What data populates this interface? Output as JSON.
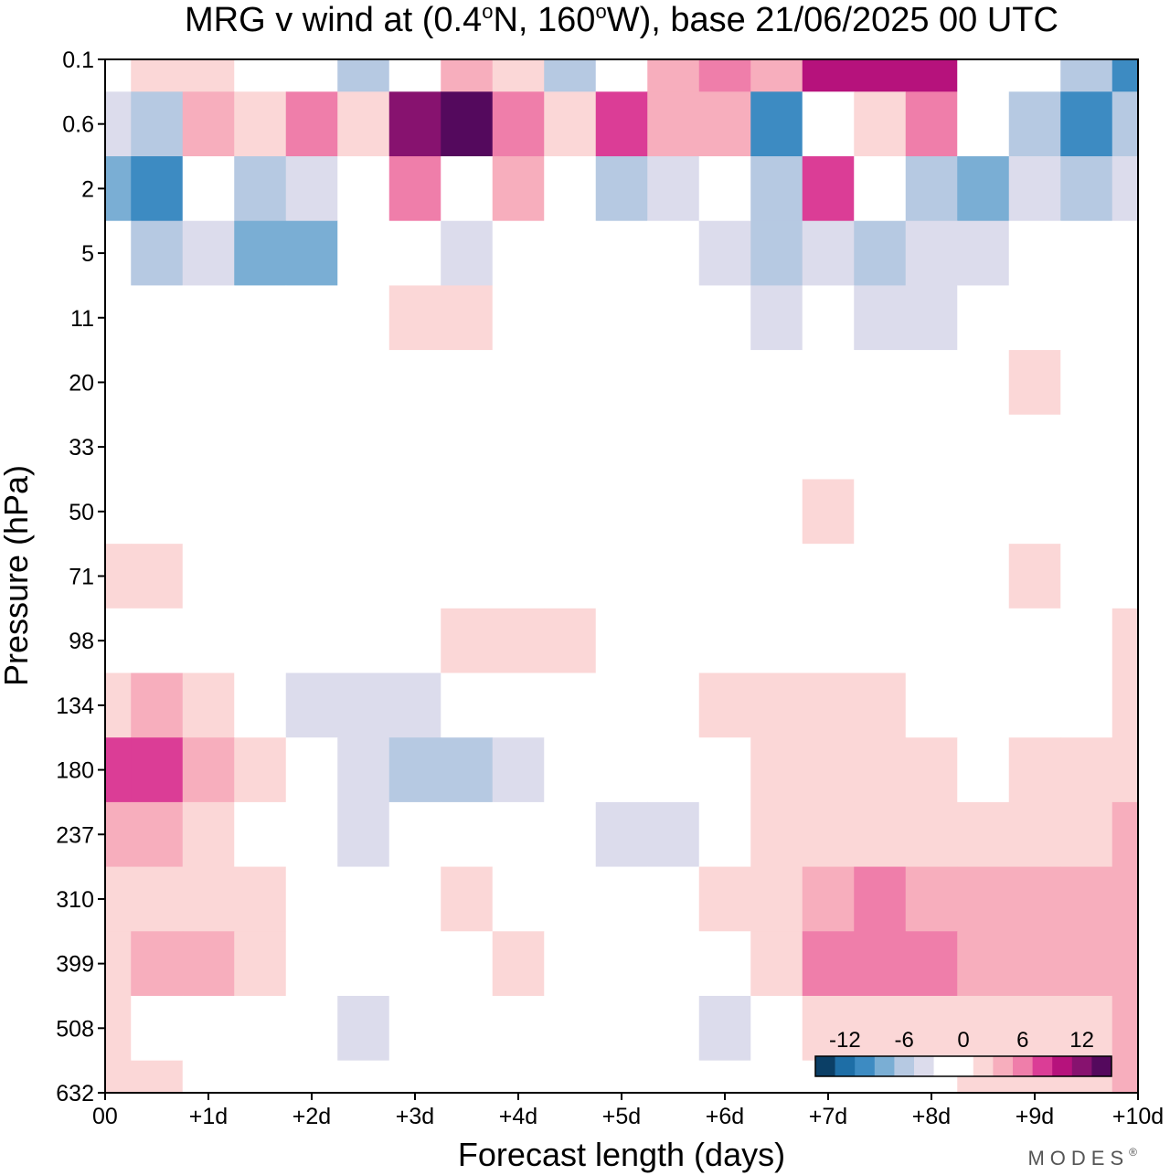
{
  "chart_data": {
    "type": "heatmap",
    "title": "MRG v wind at (0.4°N, 160°W),  base 21/06/2025  00 UTC",
    "title_parts": {
      "p1": "MRG v wind at (0.4",
      "deg1": "o",
      "p2": "N, 160",
      "deg2": "o",
      "p3": "W),  base 21/06/2025  00 UTC"
    },
    "xlabel": "Forecast length (days)",
    "ylabel": "Pressure (hPa)",
    "x_ticks": [
      "00",
      "+1d",
      "+2d",
      "+3d",
      "+4d",
      "+5d",
      "+6d",
      "+7d",
      "+8d",
      "+9d",
      "+10d"
    ],
    "y_ticks": [
      "0.1",
      "0.6",
      "2",
      "5",
      "11",
      "20",
      "33",
      "50",
      "71",
      "98",
      "134",
      "180",
      "237",
      "310",
      "399",
      "508",
      "632"
    ],
    "y_scale": "log",
    "xlim": [
      0,
      10
    ],
    "ylim": [
      632,
      0.1
    ],
    "colorbar": {
      "ticks": [
        "-12",
        "-6",
        "0",
        "6",
        "12"
      ],
      "colors": [
        "#0b3f66",
        "#1e6ea6",
        "#3d8bc2",
        "#7aaed4",
        "#b6c9e2",
        "#dcdcec",
        "#ffffff",
        "#ffffff",
        "#fbd7d7",
        "#f7aebd",
        "#ef7eaa",
        "#db3d96",
        "#b6127c",
        "#87126f",
        "#54095d"
      ],
      "placement": "bottom-right"
    },
    "x": [
      0,
      0.5,
      1,
      1.5,
      2,
      2.5,
      3,
      3.5,
      4,
      4.5,
      5,
      5.5,
      6,
      6.5,
      7,
      7.5,
      8,
      8.5,
      9,
      9.5,
      10
    ],
    "levels": [
      0.1,
      0.6,
      2,
      5,
      11,
      20,
      33,
      50,
      71,
      98,
      134,
      180,
      237,
      310,
      399,
      508,
      632
    ],
    "v_grid": [
      [
        0,
        2,
        2,
        -2,
        0,
        -6,
        0,
        4,
        2,
        -5,
        0,
        4,
        6,
        4,
        10,
        11,
        10,
        0,
        0,
        -6,
        -10
      ],
      [
        -3,
        -6,
        5,
        3,
        6,
        2,
        12,
        14,
        7,
        3,
        9,
        4,
        5,
        -10,
        0,
        2,
        6,
        -2,
        -6,
        -10,
        -5
      ],
      [
        -8,
        -9,
        -2,
        -6,
        -4,
        0,
        6,
        0,
        5,
        0,
        -6,
        -3,
        0,
        -5,
        8,
        0,
        -6,
        -8,
        -3,
        -5,
        -3
      ],
      [
        -2,
        -5,
        -4,
        -8,
        -7,
        -2,
        0,
        -3,
        -2,
        0,
        0,
        0,
        -3,
        -6,
        -3,
        -5,
        -4,
        -3,
        -2,
        0,
        0
      ],
      [
        -1,
        -2,
        -1,
        -2,
        -2,
        0,
        2,
        3,
        0,
        -2,
        -1,
        -1,
        -1,
        -4,
        -2,
        -3,
        -3,
        -2,
        -1,
        -1,
        -1
      ],
      [
        -2,
        0,
        0,
        0,
        0,
        -1,
        0,
        0,
        0,
        -2,
        -1,
        0,
        0,
        -2,
        0,
        0,
        -2,
        0,
        2,
        0,
        -1
      ],
      [
        0,
        0,
        0,
        0,
        0,
        0,
        0,
        0,
        0,
        0,
        0,
        0,
        0,
        0,
        0,
        0,
        0,
        0,
        0,
        0,
        0
      ],
      [
        0,
        0,
        0,
        0,
        0,
        0,
        0,
        0,
        0,
        0,
        0,
        0,
        0,
        0,
        2,
        0,
        0,
        0,
        0,
        0,
        0
      ],
      [
        2,
        2,
        0,
        0,
        0,
        0,
        0,
        0,
        0,
        0,
        0,
        0,
        0,
        0,
        0,
        0,
        0,
        0,
        2,
        0,
        -1
      ],
      [
        0,
        0,
        0,
        0,
        0,
        0,
        0,
        2,
        2,
        2,
        0,
        0,
        0,
        0,
        0,
        0,
        -2,
        -2,
        0,
        0,
        2
      ],
      [
        3,
        4,
        3,
        0,
        -3,
        -4,
        -3,
        0,
        0,
        0,
        0,
        0,
        2,
        3,
        3,
        2,
        0,
        0,
        0,
        0,
        3
      ],
      [
        9,
        8,
        5,
        3,
        -2,
        -4,
        -6,
        -6,
        -4,
        -2,
        -1,
        0,
        0,
        2,
        2,
        2,
        2,
        0,
        2,
        3,
        3
      ],
      [
        5,
        4,
        2,
        0,
        0,
        -3,
        -2,
        0,
        0,
        -2,
        -4,
        -4,
        0,
        2,
        3,
        3,
        2,
        2,
        3,
        3,
        4
      ],
      [
        2,
        2,
        2,
        3,
        0,
        0,
        0,
        2,
        0,
        0,
        0,
        0,
        2,
        3,
        5,
        6,
        4,
        4,
        4,
        4,
        4
      ],
      [
        3,
        4,
        4,
        2,
        0,
        0,
        0,
        0,
        2,
        0,
        0,
        0,
        0,
        2,
        6,
        7,
        6,
        4,
        4,
        4,
        4
      ],
      [
        2,
        0,
        0,
        0,
        -2,
        -3,
        -1,
        0,
        0,
        0,
        -1,
        -2,
        -3,
        -2,
        2,
        2,
        3,
        3,
        3,
        3,
        4
      ],
      [
        2,
        3,
        0,
        0,
        0,
        -1,
        -2,
        -2,
        -2,
        0,
        0,
        -2,
        -2,
        -1,
        0,
        0,
        0,
        2,
        2,
        3,
        4
      ]
    ]
  },
  "brand": "MODES",
  "brand_mark": "®"
}
